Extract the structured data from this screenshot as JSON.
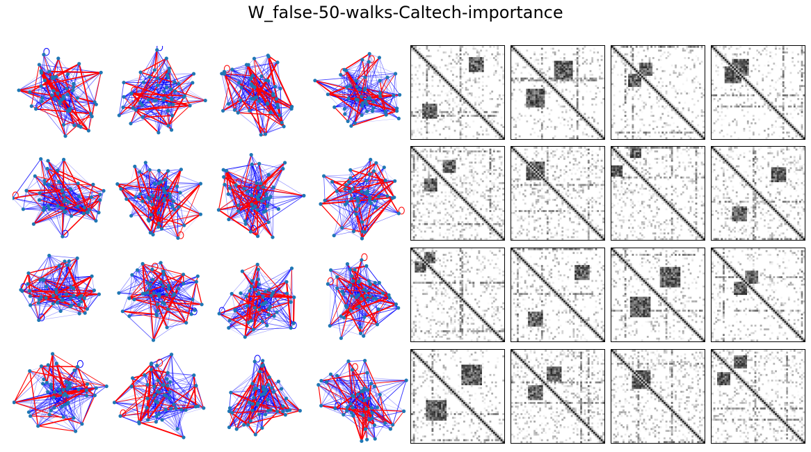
{
  "figure": {
    "title": "W_false-50-walks-Caltech-importance"
  },
  "colors": {
    "strong_edge": "#ff0000",
    "weak_edge": "#0000ff",
    "node": "#1f77b4",
    "matrix_ink": "#000000",
    "background": "#ffffff"
  },
  "network_panels": {
    "rows": 4,
    "cols": 4,
    "nodes_per_graph": 50
  },
  "matrix_panels": {
    "rows": 4,
    "cols": 4,
    "matrix_size": 50
  }
}
